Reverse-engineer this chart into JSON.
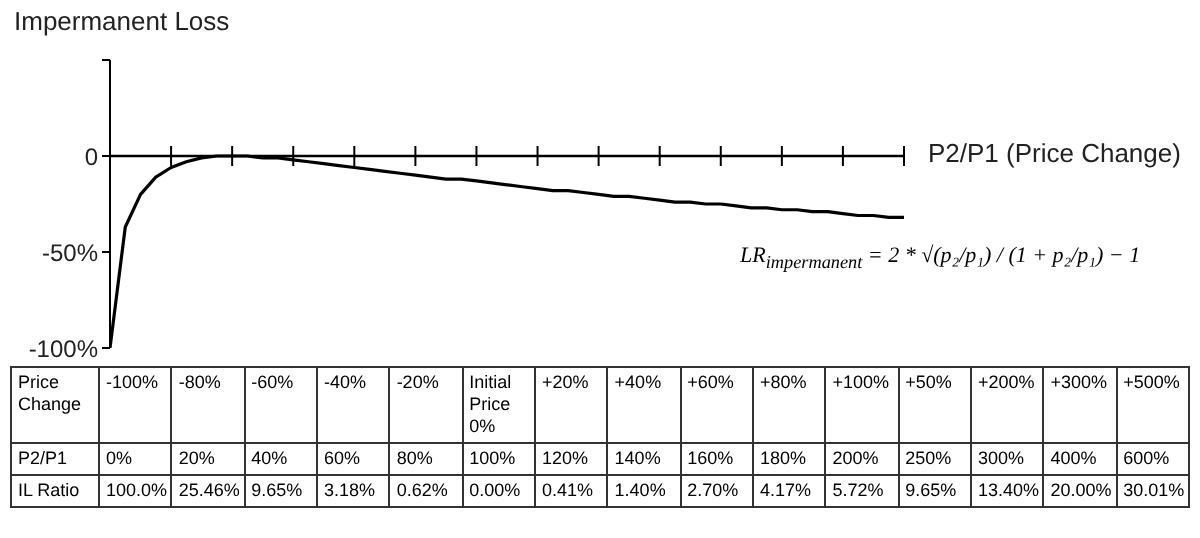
{
  "chart_data": {
    "type": "line",
    "title": "Impermanent Loss",
    "xlabel": "P2/P1 (Price Change)",
    "categories": [
      null,
      null,
      null,
      null,
      null,
      null,
      null,
      null,
      null,
      null,
      null,
      null,
      null,
      null,
      null,
      null,
      null,
      null,
      null,
      null,
      null,
      null,
      null,
      null,
      null,
      null,
      null,
      null,
      null,
      null,
      null,
      null,
      null,
      null,
      null,
      null,
      null,
      null,
      null,
      null,
      null,
      null,
      null,
      null,
      null,
      null,
      null,
      null,
      null,
      null,
      null,
      null,
      null
    ],
    "series": [
      {
        "color": "#000000",
        "values": [
          -100,
          -37,
          -20,
          -11,
          -6,
          -3,
          -1,
          0,
          0,
          0,
          -1,
          -1,
          -2,
          -3,
          -4,
          -5,
          -6,
          -7,
          -8,
          -9,
          -10,
          -11,
          -12,
          -12,
          -13,
          -14,
          -15,
          -16,
          -17,
          -18,
          -18,
          -19,
          -20,
          -21,
          -21,
          -22,
          -23,
          -24,
          -24,
          -25,
          -25,
          -26,
          -27,
          -27,
          -28,
          -28,
          -29,
          -29,
          -30,
          -31,
          -31,
          -32,
          -32
        ]
      }
    ],
    "ylim": [
      -100,
      50
    ],
    "yticks": [
      {
        "value": 50,
        "label": null
      },
      {
        "value": 0,
        "label": "0"
      },
      {
        "value": -50,
        "label": "-50%"
      },
      {
        "value": -100,
        "label": "-100%"
      }
    ],
    "tick_labels": "y",
    "marker": "none",
    "line_style": "solid",
    "annotations": [
      "Price Change",
      "-100%",
      "-80%",
      "-60%",
      "-40%",
      "-20%",
      "Initial Price 0%",
      "+20%",
      "+40%",
      "+60%",
      "+80%",
      "+100%",
      "+50%",
      "+200%",
      "+300%",
      "+500%",
      "P2/P1",
      "0%",
      "20%",
      "40%",
      "60%",
      "80%",
      "100%",
      "120%",
      "140%",
      "160%",
      "180%",
      "200%",
      "250%",
      "300%",
      "400%",
      "600%",
      "IL Ratio",
      "100.0%",
      "25.46%",
      "9.65%",
      "3.18%",
      "0.62%",
      "0.00%",
      "0.41%",
      "1.40%",
      "2.70%",
      "4.17%",
      "5.72%",
      "9.65%",
      "13.40%",
      "20.00%",
      "30.01%",
      "LR$_{impermanent}$ = 2 * √(p₂/p₁) / (1 + p₂/p₁) − 1"
    ]
  }
}
